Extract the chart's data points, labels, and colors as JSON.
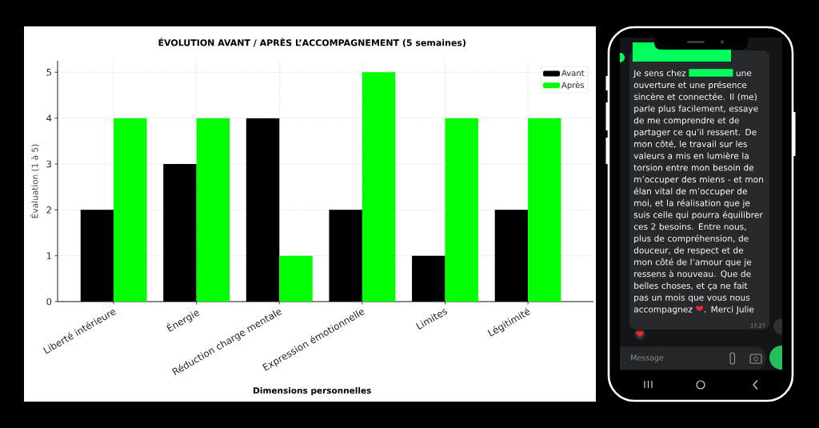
{
  "chart_data": [
    {
      "type": "bar",
      "title": "ÉVOLUTION AVANT / APRÈS L’ACCOMPAGNEMENT (5 semaines)",
      "xlabel": "Dimensions personnelles",
      "ylabel": "Évaluation (1 à 5)",
      "categories": [
        "Liberté intérieure",
        "Énergie",
        "Réduction charge mentale",
        "Expression émotionnelle",
        "Limites",
        "Légitimité"
      ],
      "series": [
        {
          "name": "Avant",
          "color": "#000000",
          "values": [
            2,
            3,
            4,
            2,
            1,
            2
          ]
        },
        {
          "name": "Après",
          "color": "#00ff00",
          "values": [
            4,
            4,
            1,
            5,
            4,
            4
          ]
        }
      ],
      "ylim": [
        0,
        5.25
      ],
      "yticks": [
        0,
        1,
        2,
        3,
        4,
        5
      ],
      "grid": true,
      "legend": "top right"
    },
    {
      "type": "other",
      "annotations": [
        "Je sens chez",
        "une ouverture et une présence sincère et connectée. Il (me) parle plus facilement, essaye de me comprendre et de partager ce qu’il ressent. De mon côté, le travail sur les valeurs a mis en lumière la torsion entre mon besoin de m’occuper des miens - et mon élan vital de m’occuper de moi, et la réalisation que je suis celle qui pourra équilibrer ces 2 besoins. Entre nous, plus de compréhension, de douceur, de respect et de mon côté de l’amour que je ressens à nouveau. Que de belles choses, et ça ne fait pas un mois que vous nous accompagnez ❤. Merci Julie",
        "17:27",
        "Message"
      ]
    }
  ]
}
